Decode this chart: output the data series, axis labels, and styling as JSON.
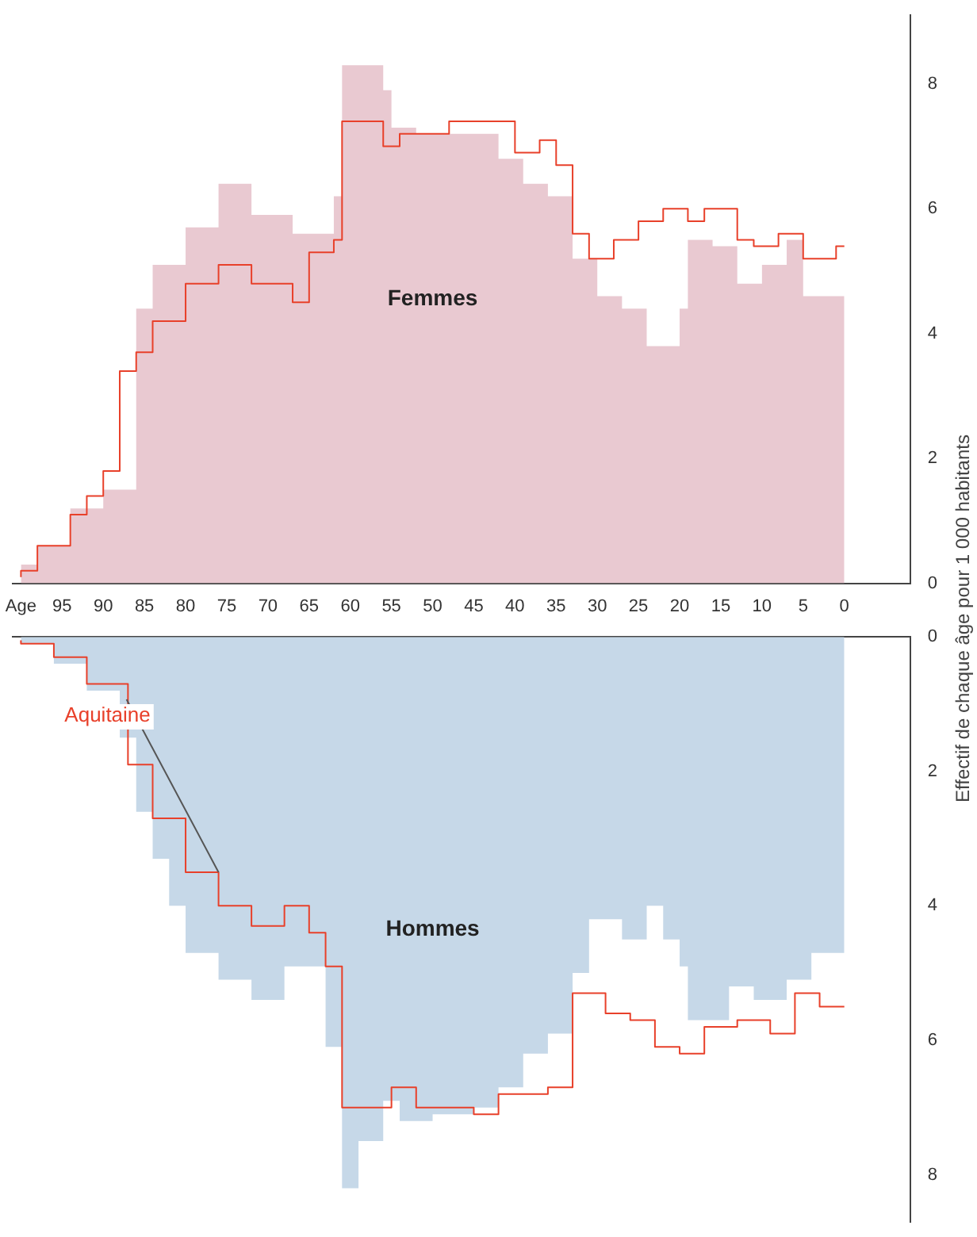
{
  "chart_data": [
    {
      "type": "step",
      "ylabel": "Effectif de chaque âge pour 1 000 habitants",
      "annotations": [
        "Femmes"
      ],
      "xlim": [
        101,
        -8
      ],
      "xticks": [
        {
          "value": 100,
          "label": "Age"
        },
        95,
        90,
        85,
        80,
        75,
        70,
        65,
        60,
        55,
        50,
        45,
        40,
        35,
        30,
        25,
        20,
        15,
        10,
        5,
        0
      ],
      "ylim": [
        0,
        9.1
      ],
      "yticks": [
        0,
        2,
        4,
        6,
        8
      ],
      "grid": false,
      "legend": false,
      "series": [
        {
          "type": "area",
          "color": "#e9c9d1",
          "x": [
            0,
            5,
            7,
            10,
            13,
            16,
            19,
            20,
            24,
            27,
            30,
            33,
            36,
            39,
            42,
            52,
            55,
            56,
            61,
            62,
            67,
            72,
            76,
            80,
            84,
            86,
            90,
            94,
            98,
            100
          ],
          "values": [
            4.6,
            5.5,
            5.1,
            4.8,
            5.4,
            5.5,
            4.4,
            3.8,
            4.4,
            4.6,
            5.2,
            6.2,
            6.4,
            6.8,
            7.2,
            7.3,
            7.9,
            8.3,
            6.2,
            5.6,
            5.9,
            6.4,
            5.7,
            5.1,
            4.4,
            1.5,
            1.2,
            0.6,
            0.3,
            0.2
          ]
        },
        {
          "color": "#e8402a",
          "x": [
            0,
            1,
            5,
            8,
            11,
            13,
            17,
            19,
            22,
            25,
            28,
            31,
            33,
            35,
            37,
            40,
            48,
            54,
            56,
            61,
            62,
            65,
            67,
            72,
            76,
            80,
            84,
            86,
            88,
            90,
            92,
            94,
            98,
            100
          ],
          "values": [
            5.4,
            5.2,
            5.6,
            5.4,
            5.5,
            6.0,
            5.8,
            6.0,
            5.8,
            5.5,
            5.2,
            5.6,
            6.7,
            7.1,
            6.9,
            7.4,
            7.2,
            7.0,
            7.4,
            5.5,
            5.3,
            4.5,
            4.8,
            5.1,
            4.8,
            4.2,
            3.7,
            3.4,
            1.8,
            1.4,
            1.1,
            0.6,
            0.2,
            0.1
          ]
        }
      ]
    },
    {
      "type": "step",
      "annotations": [
        "Hommes"
      ],
      "xlim": [
        101,
        -8
      ],
      "ylim": [
        8.7,
        0
      ],
      "yticks": [
        0,
        2,
        4,
        6,
        8
      ],
      "tick_labels": "y",
      "grid": false,
      "legend": false,
      "series": [
        {
          "type": "area",
          "color": "#c6d8e8",
          "x": [
            0,
            4,
            7,
            11,
            14,
            19,
            20,
            22,
            24,
            27,
            31,
            33,
            36,
            39,
            42,
            45,
            50,
            54,
            56,
            59,
            61,
            63,
            68,
            72,
            76,
            80,
            82,
            84,
            86,
            88,
            92,
            96,
            100
          ],
          "values": [
            4.7,
            5.1,
            5.4,
            5.2,
            5.7,
            4.9,
            4.5,
            4.0,
            4.5,
            4.2,
            5.0,
            5.9,
            6.2,
            6.7,
            7.0,
            7.1,
            7.2,
            6.9,
            7.5,
            8.2,
            6.1,
            4.9,
            5.4,
            5.1,
            4.7,
            4.0,
            3.3,
            2.6,
            1.5,
            0.8,
            0.4,
            0.1,
            0.05
          ]
        },
        {
          "name": "Aquitaine",
          "color": "#e8402a",
          "x": [
            0,
            3,
            6,
            9,
            13,
            17,
            20,
            23,
            26,
            29,
            33,
            36,
            42,
            45,
            52,
            55,
            61,
            63,
            65,
            68,
            72,
            76,
            80,
            84,
            87,
            92,
            96,
            100
          ],
          "values": [
            5.5,
            5.3,
            5.9,
            5.7,
            5.8,
            6.2,
            6.1,
            5.7,
            5.6,
            5.3,
            6.7,
            6.8,
            7.1,
            7.0,
            6.7,
            7.0,
            4.9,
            4.4,
            4.0,
            4.3,
            4.0,
            3.5,
            2.7,
            1.9,
            0.7,
            0.3,
            0.1,
            0.05
          ]
        }
      ]
    }
  ]
}
